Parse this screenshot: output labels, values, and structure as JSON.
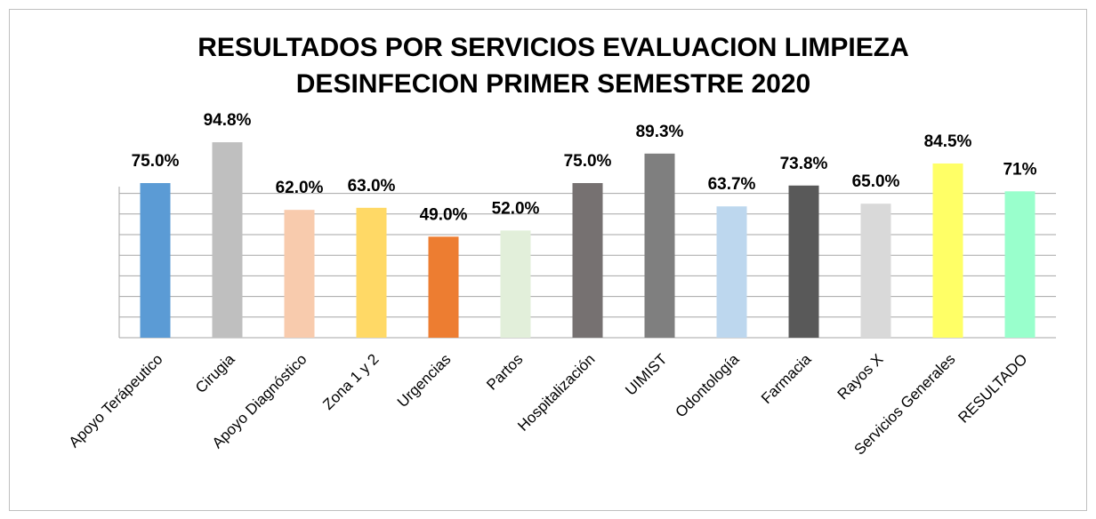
{
  "chart_data": {
    "type": "bar",
    "title": [
      "RESULTADOS POR SERVICIOS EVALUACION LIMPIEZA",
      "DESINFECION PRIMER SEMESTRE 2020"
    ],
    "categories": [
      "Apoyo Terápeutico",
      "Cirugia",
      "Apoyo Diagnóstico",
      "Zona 1 y 2",
      "Urgencias",
      "Partos",
      "Hospitalización",
      "UIMIST",
      "Odontología",
      "Farmacia",
      "Rayos X",
      "Servicios Generales",
      "RESULTADO"
    ],
    "values": [
      75.0,
      94.8,
      62.0,
      63.0,
      49.0,
      52.0,
      75.0,
      89.3,
      63.7,
      73.8,
      65.0,
      84.5,
      71
    ],
    "value_labels": [
      "75.0%",
      "94.8%",
      "62.0%",
      "63.0%",
      "49.0%",
      "52.0%",
      "75.0%",
      "89.3%",
      "63.7%",
      "73.8%",
      "65.0%",
      "84.5%",
      "71%"
    ],
    "colors": [
      "#5b9bd5",
      "#bfbfbf",
      "#f8cbad",
      "#ffd966",
      "#ed7d31",
      "#e2efda",
      "#767171",
      "#7f7f7f",
      "#bdd7ee",
      "#595959",
      "#d9d9d9",
      "#ffff66",
      "#99ffcc"
    ],
    "ylim": [
      0,
      100
    ],
    "yticks": [
      0,
      10,
      20,
      30,
      40,
      50,
      60,
      70,
      80,
      90,
      100
    ],
    "grid": true
  }
}
